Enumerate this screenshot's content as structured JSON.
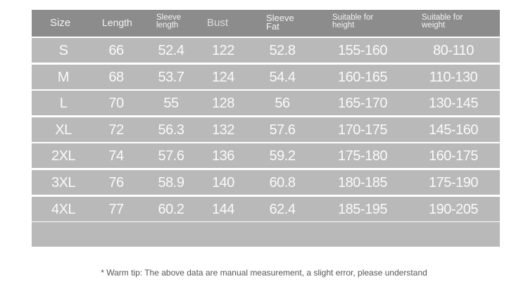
{
  "headers": {
    "size": "Size",
    "length": "Length",
    "sleeve_length": [
      "Sleeve",
      "length"
    ],
    "bust": "Bust",
    "sleeve_fat": [
      "Sleeve",
      "Fat"
    ],
    "height": [
      "Suitable for",
      "height"
    ],
    "weight": [
      "Suitable for",
      "weight"
    ]
  },
  "rows": [
    [
      "S",
      "66",
      "52.4",
      "122",
      "52.8",
      "155-160",
      "80-110"
    ],
    [
      "M",
      "68",
      "53.7",
      "124",
      "54.4",
      "160-165",
      "110-130"
    ],
    [
      "L",
      "70",
      "55",
      "128",
      "56",
      "165-170",
      "130-145"
    ],
    [
      "XL",
      "72",
      "56.3",
      "132",
      "57.6",
      "170-175",
      "145-160"
    ],
    [
      "2XL",
      "74",
      "57.6",
      "136",
      "59.2",
      "175-180",
      "160-175"
    ],
    [
      "3XL",
      "76",
      "58.9",
      "140",
      "60.8",
      "180-185",
      "175-190"
    ],
    [
      "4XL",
      "77",
      "60.2",
      "144",
      "62.4",
      "185-195",
      "190-205"
    ]
  ],
  "note": "* Warm tip: The above data are manual measurement, a slight error, please understand",
  "colors": {
    "header_bg": "#8c8c8c",
    "row_bg": "#b9b9b9",
    "text": "#ffffff"
  }
}
